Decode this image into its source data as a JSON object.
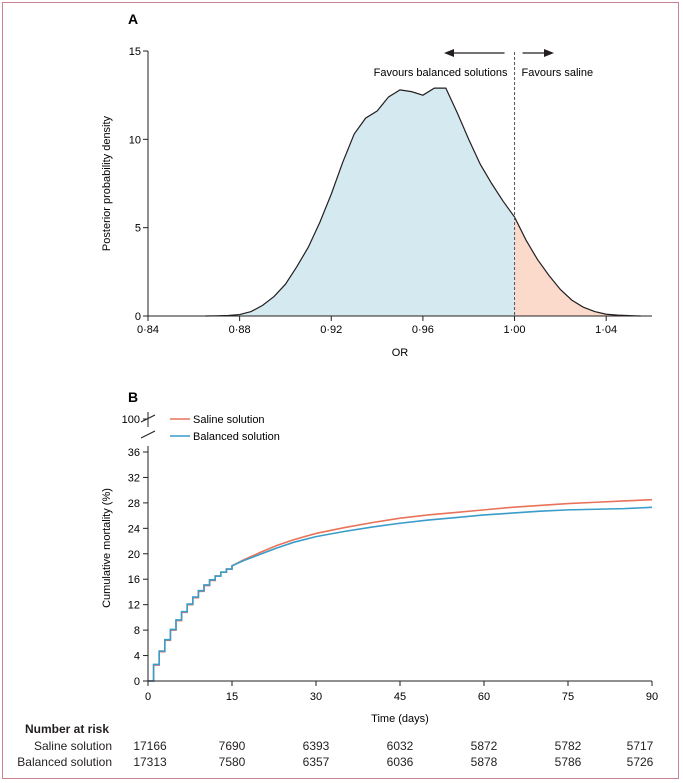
{
  "chart_data": [
    {
      "type": "area",
      "panel_label": "A",
      "xlabel": "OR",
      "ylabel": "Posterior probability density",
      "xlim": [
        0.84,
        1.06
      ],
      "ylim": [
        0,
        15
      ],
      "xticks": [
        0.84,
        0.88,
        0.92,
        0.96,
        1.0,
        1.04
      ],
      "xtick_labels": [
        "0·84",
        "0·88",
        "0·92",
        "0·96",
        "1·00",
        "1·04"
      ],
      "yticks": [
        0,
        5,
        10,
        15
      ],
      "ytick_labels": [
        "0",
        "5",
        "10",
        "15"
      ],
      "threshold": 1.0,
      "annotations": {
        "left": "Favours balanced solutions",
        "right": "Favours saline"
      },
      "fill_colors": {
        "left": "#d5e9f1",
        "right": "#fbd9cb"
      },
      "x": [
        0.865,
        0.87,
        0.875,
        0.88,
        0.885,
        0.89,
        0.895,
        0.9,
        0.905,
        0.91,
        0.915,
        0.92,
        0.925,
        0.93,
        0.935,
        0.94,
        0.945,
        0.95,
        0.955,
        0.96,
        0.965,
        0.97,
        0.975,
        0.98,
        0.985,
        0.99,
        0.995,
        1.0,
        1.005,
        1.01,
        1.015,
        1.02,
        1.025,
        1.03,
        1.035,
        1.04,
        1.045,
        1.05,
        1.055
      ],
      "y": [
        0.0,
        0.01,
        0.03,
        0.08,
        0.25,
        0.6,
        1.1,
        1.8,
        2.8,
        3.9,
        5.3,
        6.9,
        8.7,
        10.3,
        11.2,
        11.6,
        12.4,
        12.8,
        12.7,
        12.5,
        12.9,
        12.9,
        11.5,
        10.0,
        8.6,
        7.5,
        6.5,
        5.6,
        4.3,
        3.2,
        2.3,
        1.5,
        0.9,
        0.5,
        0.25,
        0.1,
        0.05,
        0.02,
        0.0
      ]
    },
    {
      "type": "line",
      "panel_label": "B",
      "xlabel": "Time (days)",
      "ylabel": "Cumulative mortality (%)",
      "xlim": [
        0,
        90
      ],
      "ylim": [
        0,
        36
      ],
      "xticks": [
        0,
        15,
        30,
        45,
        60,
        75,
        90
      ],
      "xtick_labels": [
        "0",
        "15",
        "30",
        "45",
        "60",
        "75",
        "90"
      ],
      "yticks": [
        0,
        4,
        8,
        12,
        16,
        20,
        24,
        28,
        32,
        36
      ],
      "ytick_labels": [
        "0",
        "4",
        "8",
        "12",
        "16",
        "20",
        "24",
        "28",
        "32",
        "36"
      ],
      "axis_break_label": "100",
      "x": [
        0,
        1,
        2,
        3,
        4,
        5,
        6,
        7,
        8,
        9,
        10,
        11,
        12,
        13,
        14,
        15,
        17,
        20,
        23,
        26,
        30,
        35,
        40,
        45,
        50,
        55,
        60,
        65,
        70,
        75,
        80,
        85,
        90
      ],
      "series": [
        {
          "name": "Saline solution",
          "color": "#e8735a",
          "values": [
            0,
            2.5,
            4.6,
            6.4,
            8.0,
            9.5,
            10.8,
            12.0,
            13.1,
            14.1,
            15.0,
            15.8,
            16.5,
            17.1,
            17.6,
            18.1,
            19.0,
            20.2,
            21.3,
            22.2,
            23.2,
            24.1,
            24.9,
            25.6,
            26.1,
            26.5,
            26.9,
            27.3,
            27.6,
            27.9,
            28.1,
            28.3,
            28.5
          ]
        },
        {
          "name": "Balanced solution",
          "color": "#3a9cc9",
          "values": [
            0,
            2.6,
            4.7,
            6.5,
            8.1,
            9.6,
            10.9,
            12.1,
            13.2,
            14.2,
            15.1,
            15.9,
            16.5,
            17.1,
            17.6,
            18.1,
            18.9,
            19.9,
            20.9,
            21.8,
            22.7,
            23.5,
            24.2,
            24.8,
            25.3,
            25.7,
            26.1,
            26.4,
            26.7,
            26.9,
            27.0,
            27.1,
            27.3
          ]
        }
      ]
    }
  ],
  "risk_table": {
    "title": "Number at risk",
    "times": [
      0,
      15,
      30,
      45,
      60,
      75,
      90
    ],
    "rows": [
      {
        "label": "Saline solution",
        "values": [
          "17166",
          "7690",
          "6393",
          "6032",
          "5872",
          "5782",
          "5717"
        ]
      },
      {
        "label": "Balanced solution",
        "values": [
          "17313",
          "7580",
          "6357",
          "6036",
          "5878",
          "5786",
          "5726"
        ]
      }
    ]
  }
}
